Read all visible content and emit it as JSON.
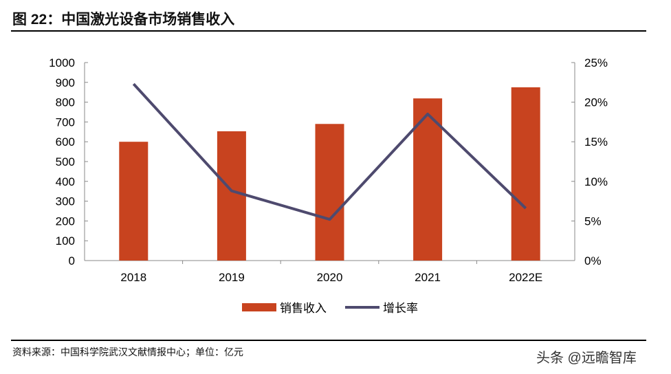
{
  "title": "图 22：中国激光设备市场销售收入",
  "source": "资料来源：中国科学院武汉文献情报中心；单位：亿元",
  "watermark": "头条 @远瞻智库",
  "chart_data": {
    "type": "bar+line",
    "categories": [
      "2018",
      "2019",
      "2020",
      "2021",
      "2022E"
    ],
    "series": [
      {
        "name": "销售收入",
        "type": "bar",
        "axis": "left",
        "color": "#C8431F",
        "values": [
          600,
          653,
          690,
          819,
          875
        ]
      },
      {
        "name": "增长率",
        "type": "line",
        "axis": "right",
        "color": "#4E4A6E",
        "values": [
          22.3,
          8.8,
          5.2,
          18.5,
          6.6
        ]
      }
    ],
    "left_axis": {
      "ylim": [
        0,
        1000
      ],
      "ticks": [
        "0",
        "100",
        "200",
        "300",
        "400",
        "500",
        "600",
        "700",
        "800",
        "900",
        "1000"
      ]
    },
    "right_axis": {
      "ylim": [
        0,
        25
      ],
      "ticks": [
        "0%",
        "5%",
        "10%",
        "15%",
        "20%",
        "25%"
      ]
    },
    "legend": "bottom-center",
    "grid": false
  }
}
